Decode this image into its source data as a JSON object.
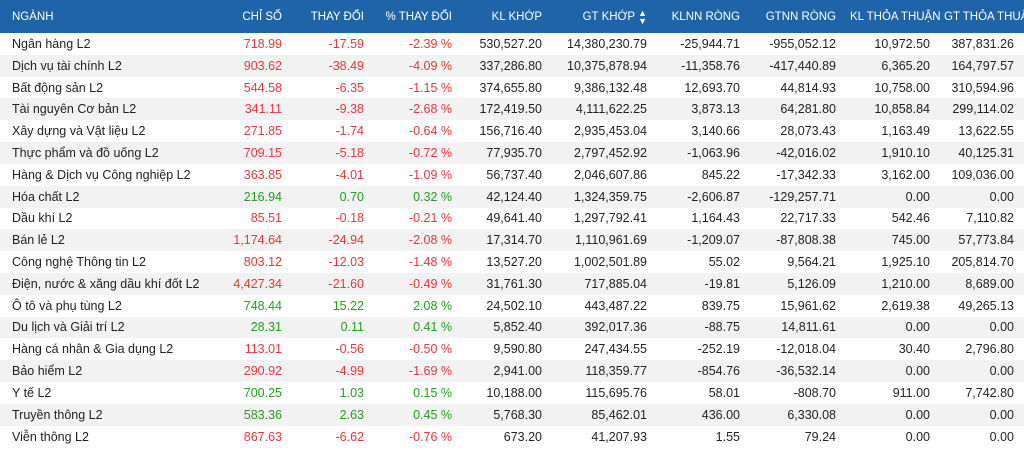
{
  "colors": {
    "header_bg": "#1f64a8",
    "up": "#22a022",
    "down": "#e8383d"
  },
  "table": {
    "headers": [
      "NGÀNH",
      "CHỈ SỐ",
      "THAY ĐỔI",
      "% THAY ĐỔI",
      "KL KHỚP",
      "GT KHỚP",
      "KLNN RÒNG",
      "GTNN RÒNG",
      "KL THỎA THUẬN",
      "GT THỎA THUẬN"
    ],
    "sort_icon": "sort-up-down-icon",
    "rows": [
      {
        "name": "Ngân hàng L2",
        "dir": "down",
        "chi_so": "718.99",
        "thay_doi": "-17.59",
        "pct": "-2.39 %",
        "kl_khop": "530,527.20",
        "gt_khop": "14,380,230.79",
        "klnn": "-25,944.71",
        "gtnn": "-955,052.12",
        "kl_tt": "10,972.50",
        "gt_tt": "387,831.26"
      },
      {
        "name": "Dịch vụ tài chính L2",
        "dir": "down",
        "chi_so": "903.62",
        "thay_doi": "-38.49",
        "pct": "-4.09 %",
        "kl_khop": "337,286.80",
        "gt_khop": "10,375,878.94",
        "klnn": "-11,358.76",
        "gtnn": "-417,440.89",
        "kl_tt": "6,365.20",
        "gt_tt": "164,797.57"
      },
      {
        "name": "Bất động sản L2",
        "dir": "down",
        "chi_so": "544.58",
        "thay_doi": "-6.35",
        "pct": "-1.15 %",
        "kl_khop": "374,655.80",
        "gt_khop": "9,386,132.48",
        "klnn": "12,693.70",
        "gtnn": "44,814.93",
        "kl_tt": "10,758.00",
        "gt_tt": "310,594.96"
      },
      {
        "name": "Tài nguyên Cơ bản L2",
        "dir": "down",
        "chi_so": "341.11",
        "thay_doi": "-9.38",
        "pct": "-2.68 %",
        "kl_khop": "172,419.50",
        "gt_khop": "4,111,622.25",
        "klnn": "3,873.13",
        "gtnn": "64,281.80",
        "kl_tt": "10,858.84",
        "gt_tt": "299,114.02"
      },
      {
        "name": "Xây dựng và Vật liệu L2",
        "dir": "down",
        "chi_so": "271.85",
        "thay_doi": "-1.74",
        "pct": "-0.64 %",
        "kl_khop": "156,716.40",
        "gt_khop": "2,935,453.04",
        "klnn": "3,140.66",
        "gtnn": "28,073.43",
        "kl_tt": "1,163.49",
        "gt_tt": "13,622.55"
      },
      {
        "name": "Thực phẩm và đồ uống L2",
        "dir": "down",
        "chi_so": "709.15",
        "thay_doi": "-5.18",
        "pct": "-0.72 %",
        "kl_khop": "77,935.70",
        "gt_khop": "2,797,452.92",
        "klnn": "-1,063.96",
        "gtnn": "-42,016.02",
        "kl_tt": "1,910.10",
        "gt_tt": "40,125.31"
      },
      {
        "name": "Hàng & Dịch vụ Công nghiệp L2",
        "dir": "down",
        "chi_so": "363.85",
        "thay_doi": "-4.01",
        "pct": "-1.09 %",
        "kl_khop": "56,737.40",
        "gt_khop": "2,046,607.86",
        "klnn": "845.22",
        "gtnn": "-17,342.33",
        "kl_tt": "3,162.00",
        "gt_tt": "109,036.00"
      },
      {
        "name": "Hóa chất L2",
        "dir": "up",
        "chi_so": "216.94",
        "thay_doi": "0.70",
        "pct": "0.32 %",
        "kl_khop": "42,124.40",
        "gt_khop": "1,324,359.75",
        "klnn": "-2,606.87",
        "gtnn": "-129,257.71",
        "kl_tt": "0.00",
        "gt_tt": "0.00"
      },
      {
        "name": "Dầu khí L2",
        "dir": "down",
        "chi_so": "85.51",
        "thay_doi": "-0.18",
        "pct": "-0.21 %",
        "kl_khop": "49,641.40",
        "gt_khop": "1,297,792.41",
        "klnn": "1,164.43",
        "gtnn": "22,717.33",
        "kl_tt": "542.46",
        "gt_tt": "7,110.82"
      },
      {
        "name": "Bán lẻ L2",
        "dir": "down",
        "chi_so": "1,174.64",
        "thay_doi": "-24.94",
        "pct": "-2.08 %",
        "kl_khop": "17,314.70",
        "gt_khop": "1,110,961.69",
        "klnn": "-1,209.07",
        "gtnn": "-87,808.38",
        "kl_tt": "745.00",
        "gt_tt": "57,773.84"
      },
      {
        "name": "Công nghệ Thông tin L2",
        "dir": "down",
        "chi_so": "803.12",
        "thay_doi": "-12.03",
        "pct": "-1.48 %",
        "kl_khop": "13,527.20",
        "gt_khop": "1,002,501.89",
        "klnn": "55.02",
        "gtnn": "9,564.21",
        "kl_tt": "1,925.10",
        "gt_tt": "205,814.70"
      },
      {
        "name": "Điện, nước & xăng dầu khí đốt L2",
        "dir": "down",
        "chi_so": "4,427.34",
        "thay_doi": "-21.60",
        "pct": "-0.49 %",
        "kl_khop": "31,761.30",
        "gt_khop": "717,885.04",
        "klnn": "-19.81",
        "gtnn": "5,126.09",
        "kl_tt": "1,210.00",
        "gt_tt": "8,689.00"
      },
      {
        "name": "Ô tô và phụ tùng L2",
        "dir": "up",
        "chi_so": "748.44",
        "thay_doi": "15.22",
        "pct": "2.08 %",
        "kl_khop": "24,502.10",
        "gt_khop": "443,487.22",
        "klnn": "839.75",
        "gtnn": "15,961.62",
        "kl_tt": "2,619.38",
        "gt_tt": "49,265.13"
      },
      {
        "name": "Du lịch và Giải trí L2",
        "dir": "up",
        "chi_so": "28.31",
        "thay_doi": "0.11",
        "pct": "0.41 %",
        "kl_khop": "5,852.40",
        "gt_khop": "392,017.36",
        "klnn": "-88.75",
        "gtnn": "14,811.61",
        "kl_tt": "0.00",
        "gt_tt": "0.00"
      },
      {
        "name": "Hàng cá nhân & Gia dụng L2",
        "dir": "down",
        "chi_so": "113.01",
        "thay_doi": "-0.56",
        "pct": "-0.50 %",
        "kl_khop": "9,590.80",
        "gt_khop": "247,434.55",
        "klnn": "-252.19",
        "gtnn": "-12,018.04",
        "kl_tt": "30.40",
        "gt_tt": "2,796.80"
      },
      {
        "name": "Bảo hiểm L2",
        "dir": "down",
        "chi_so": "290.92",
        "thay_doi": "-4.99",
        "pct": "-1.69 %",
        "kl_khop": "2,941.00",
        "gt_khop": "118,359.77",
        "klnn": "-854.76",
        "gtnn": "-36,532.14",
        "kl_tt": "0.00",
        "gt_tt": "0.00"
      },
      {
        "name": "Y tế L2",
        "dir": "up",
        "chi_so": "700.25",
        "thay_doi": "1.03",
        "pct": "0.15 %",
        "kl_khop": "10,188.00",
        "gt_khop": "115,695.76",
        "klnn": "58.01",
        "gtnn": "-808.70",
        "kl_tt": "911.00",
        "gt_tt": "7,742.80"
      },
      {
        "name": "Truyền thông L2",
        "dir": "up",
        "chi_so": "583.36",
        "thay_doi": "2.63",
        "pct": "0.45 %",
        "kl_khop": "5,768.30",
        "gt_khop": "85,462.01",
        "klnn": "436.00",
        "gtnn": "6,330.08",
        "kl_tt": "0.00",
        "gt_tt": "0.00"
      },
      {
        "name": "Viễn thông L2",
        "dir": "down",
        "chi_so": "867.63",
        "thay_doi": "-6.62",
        "pct": "-0.76 %",
        "kl_khop": "673.20",
        "gt_khop": "41,207.93",
        "klnn": "1.55",
        "gtnn": "79.24",
        "kl_tt": "0.00",
        "gt_tt": "0.00"
      }
    ]
  }
}
